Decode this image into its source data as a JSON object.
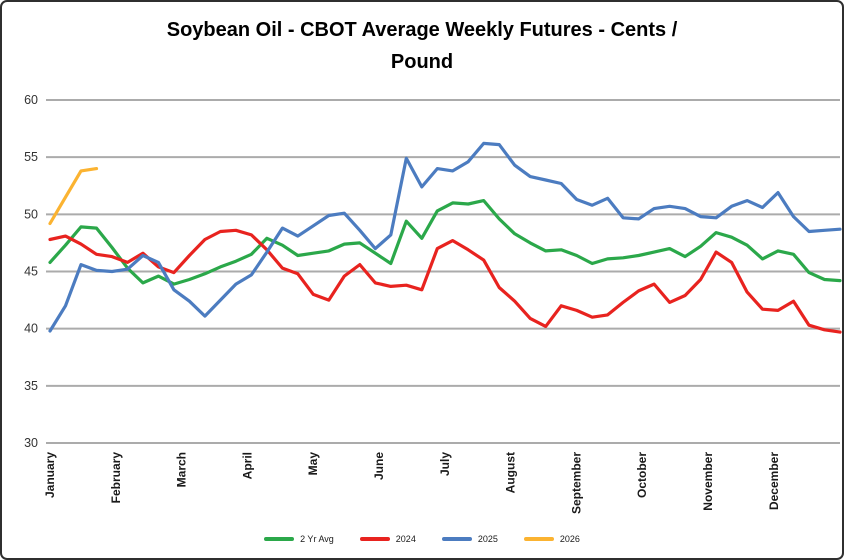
{
  "title": {
    "line1": "Soybean Oil - CBOT Average Weekly Futures - Cents /",
    "line2": "Pound",
    "full": "Soybean Oil - CBOT Average Weekly Futures - Cents / Pound"
  },
  "colors": {
    "gridline": "#ABABAB",
    "axis_text": "#333333",
    "month_text": "#1a1a1a",
    "series_2yr_avg": "#2BA84A",
    "series_2024": "#E8231F",
    "series_2025": "#4C7CC0",
    "series_2026": "#FBB331"
  },
  "chart_data": {
    "type": "line",
    "title": "Soybean Oil - CBOT Average Weekly Futures - Cents / Pound",
    "x_unit": "week",
    "weeks": 52,
    "x_month_labels": [
      "January",
      "February",
      "March",
      "April",
      "May",
      "June",
      "July",
      "August",
      "September",
      "October",
      "November",
      "December"
    ],
    "xlabel": "",
    "ylabel": "",
    "ylim": [
      30,
      60
    ],
    "y_ticks": [
      60,
      55,
      50,
      45,
      40,
      35,
      30
    ],
    "grid": "horizontal",
    "legend_position": "bottom",
    "series": [
      {
        "name": "2 Yr Avg",
        "color": "#2BA84A",
        "values": [
          45.8,
          47.3,
          48.9,
          48.8,
          47.1,
          45.3,
          44.0,
          44.6,
          43.9,
          44.3,
          44.8,
          45.4,
          45.9,
          46.5,
          47.9,
          47.3,
          46.4,
          46.6,
          46.8,
          47.4,
          47.5,
          46.6,
          45.7,
          49.4,
          47.9,
          50.3,
          51.0,
          50.9,
          51.2,
          49.6,
          48.3,
          47.5,
          46.8,
          46.9,
          46.4,
          45.7,
          46.1,
          46.2,
          46.4,
          46.7,
          47.0,
          46.3,
          47.2,
          48.4,
          48.0,
          47.3,
          46.1,
          46.8,
          46.5,
          44.9,
          44.3,
          44.2
        ]
      },
      {
        "name": "2024",
        "color": "#E8231F",
        "values": [
          47.8,
          48.1,
          47.4,
          46.5,
          46.3,
          45.8,
          46.6,
          45.4,
          44.9,
          46.4,
          47.8,
          48.5,
          48.6,
          48.2,
          46.9,
          45.3,
          44.8,
          43.0,
          42.5,
          44.6,
          45.6,
          44.0,
          43.7,
          43.8,
          43.4,
          47.0,
          47.7,
          46.9,
          46.0,
          43.6,
          42.4,
          40.9,
          40.2,
          42.0,
          41.6,
          41.0,
          41.2,
          42.3,
          43.3,
          43.9,
          42.3,
          42.9,
          44.3,
          46.7,
          45.8,
          43.2,
          41.7,
          41.6,
          42.4,
          40.3,
          39.9,
          39.7
        ]
      },
      {
        "name": "2025",
        "color": "#4C7CC0",
        "values": [
          39.8,
          42.0,
          45.6,
          45.1,
          45.0,
          45.2,
          46.4,
          45.8,
          43.4,
          42.4,
          41.1,
          42.5,
          43.9,
          44.7,
          46.7,
          48.8,
          48.1,
          49.0,
          49.9,
          50.1,
          48.6,
          47.0,
          48.2,
          54.9,
          52.4,
          54.0,
          53.8,
          54.6,
          56.2,
          56.1,
          54.3,
          53.3,
          53.0,
          52.7,
          51.3,
          50.8,
          51.4,
          49.7,
          49.6,
          50.5,
          50.7,
          50.5,
          49.8,
          49.7,
          50.7,
          51.2,
          50.6,
          51.9,
          49.8,
          48.5,
          48.6,
          48.7
        ]
      },
      {
        "name": "2026",
        "color": "#FBB331",
        "values": [
          49.2,
          51.5,
          53.8,
          54.0
        ]
      }
    ]
  }
}
